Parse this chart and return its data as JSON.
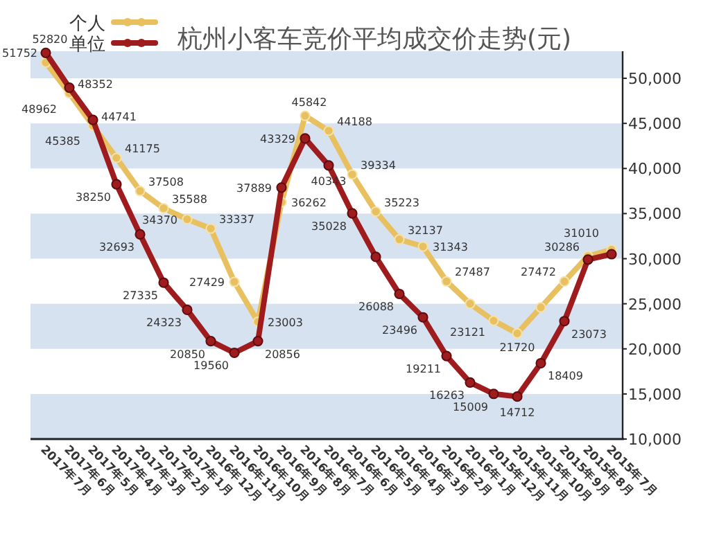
{
  "chart_data": {
    "type": "line",
    "title": "杭州小客车竞价平均成交价走势(元)",
    "categories": [
      "2017年7月",
      "2017年6月",
      "2017年5月",
      "2017年4月",
      "2017年3月",
      "2017年2月",
      "2017年1月",
      "2016年12月",
      "2016年11月",
      "2016年10月",
      "2016年9月",
      "2016年8月",
      "2016年7月",
      "2016年6月",
      "2016年5月",
      "2016年4月",
      "2016年3月",
      "2016年2月",
      "2016年1月",
      "2015年12月",
      "2015年11月",
      "2015年10月",
      "2015年9月",
      "2015年8月",
      "2015年7月"
    ],
    "series": [
      {
        "name": "个人",
        "color": "#e8c060",
        "values": [
          51752,
          48352,
          44741,
          41175,
          37508,
          35588,
          34370,
          33337,
          27429,
          23003,
          36262,
          45842,
          44188,
          39334,
          35223,
          32137,
          31343,
          27487,
          25000,
          23121,
          21720,
          24600,
          27472,
          30286,
          31010
        ],
        "value_labels": [
          "51752",
          "48352",
          "44741",
          "41175",
          "37508",
          "35588",
          "34370",
          "33337",
          "27429",
          "23003",
          "36262",
          "45842",
          "44188",
          "39334",
          "35223",
          "32137",
          "31343",
          "27487",
          null,
          "23121",
          "21720",
          null,
          "27472",
          "30286",
          "31010"
        ]
      },
      {
        "name": "单位",
        "color": "#9e1b1e",
        "values": [
          52820,
          48962,
          45385,
          38250,
          32693,
          27335,
          24323,
          20850,
          19560,
          20856,
          37889,
          43329,
          40343,
          35028,
          30200,
          26088,
          23496,
          19211,
          16263,
          15009,
          14712,
          18409,
          23073,
          29900,
          30500
        ],
        "value_labels": [
          "52820",
          "48962",
          "45385",
          "38250",
          "32693",
          "27335",
          "24323",
          "20850",
          "19560",
          "20856",
          "37889",
          "43329",
          "40343",
          "35028",
          null,
          "26088",
          "23496",
          "19211",
          "16263",
          "15009",
          "14712",
          "18409",
          "23073",
          null,
          null
        ]
      }
    ],
    "ylim": [
      10000,
      53000
    ],
    "yticks": [
      {
        "value": 10000,
        "label": "10,000"
      },
      {
        "value": 15000,
        "label": "15,000"
      },
      {
        "value": 20000,
        "label": "20,000"
      },
      {
        "value": 25000,
        "label": "25,000"
      },
      {
        "value": 30000,
        "label": "30,000"
      },
      {
        "value": 35000,
        "label": "35,000"
      },
      {
        "value": 40000,
        "label": "40,000"
      },
      {
        "value": 45000,
        "label": "45,000"
      },
      {
        "value": 50000,
        "label": "50,000"
      }
    ],
    "bands": [
      {
        "axis": "y",
        "from": 10000,
        "to": 15000,
        "color": "#d7e2f0"
      },
      {
        "axis": "y",
        "from": 20000,
        "to": 25000,
        "color": "#d7e2f0"
      },
      {
        "axis": "y",
        "from": 30000,
        "to": 35000,
        "color": "#d7e2f0"
      },
      {
        "axis": "y",
        "from": 40000,
        "to": 45000,
        "color": "#d7e2f0"
      },
      {
        "axis": "y",
        "from": 50000,
        "to": 53000,
        "color": "#d7e2f0"
      }
    ],
    "legend": "top left",
    "marker": "circle"
  }
}
